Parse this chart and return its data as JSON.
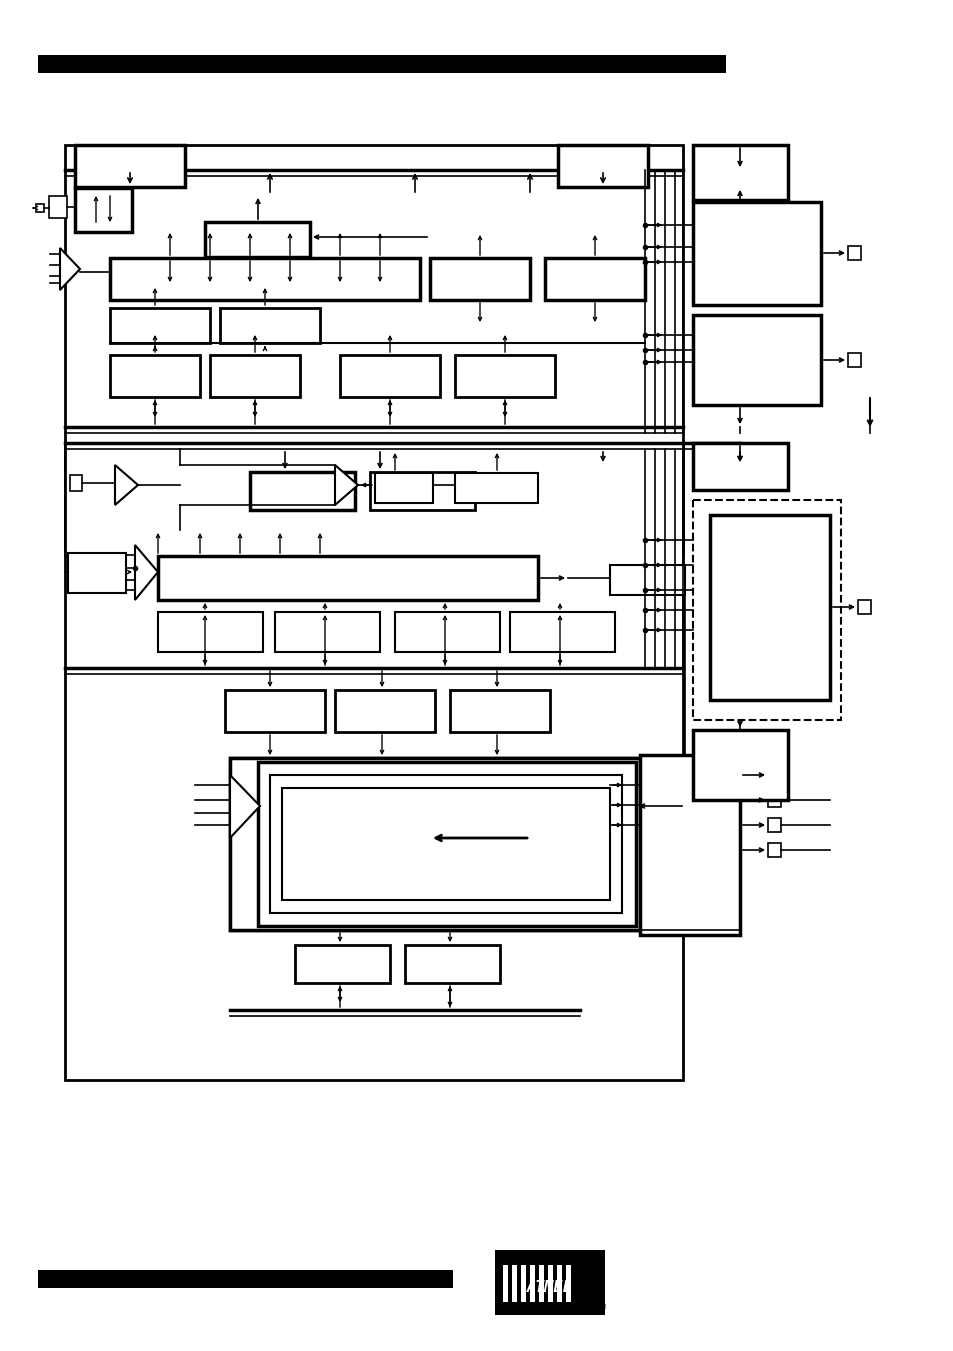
{
  "bg": "#ffffff",
  "fw": 9.54,
  "fh": 13.51,
  "dpi": 100,
  "black": "#000000"
}
